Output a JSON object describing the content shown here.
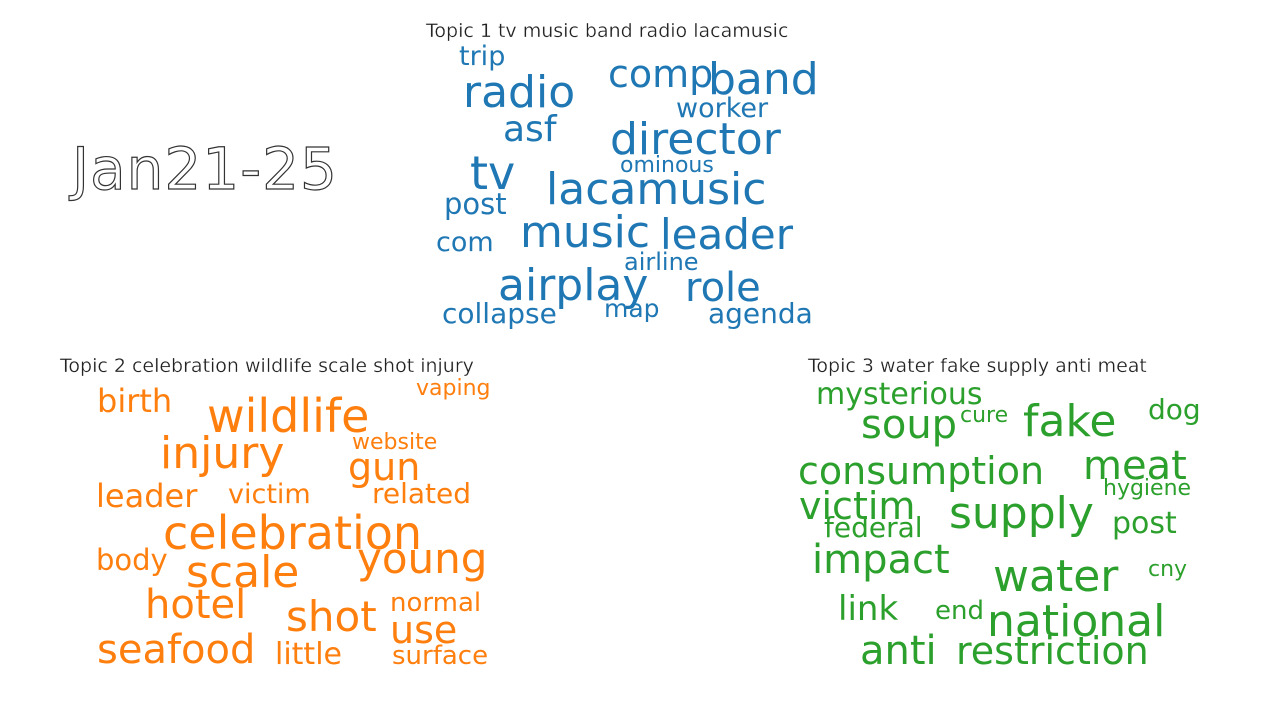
{
  "period_label": "Jan21-25",
  "colors": {
    "topic1": "#1f77b4",
    "topic2": "#ff7f0e",
    "topic3": "#2ca02c"
  },
  "topics": [
    {
      "title": "Topic 1 tv music band radio lacamusic",
      "words": [
        "trip",
        "comp",
        "band",
        "radio",
        "worker",
        "asf",
        "director",
        "ominous",
        "tv",
        "lacamusic",
        "post",
        "com",
        "music",
        "leader",
        "airline",
        "airplay",
        "role",
        "collapse",
        "map",
        "agenda"
      ]
    },
    {
      "title": "Topic 2 celebration wildlife scale shot injury",
      "words": [
        "vaping",
        "birth",
        "wildlife",
        "website",
        "injury",
        "gun",
        "leader",
        "victim",
        "related",
        "celebration",
        "body",
        "young",
        "scale",
        "hotel",
        "normal",
        "shot",
        "use",
        "seafood",
        "little",
        "surface"
      ]
    },
    {
      "title": "Topic 3 water fake supply anti meat",
      "words": [
        "mysterious",
        "dog",
        "cure",
        "soup",
        "fake",
        "consumption",
        "meat",
        "hygiene",
        "victim",
        "supply",
        "federal",
        "post",
        "impact",
        "water",
        "cny",
        "link",
        "end",
        "national",
        "anti",
        "restriction"
      ]
    }
  ]
}
